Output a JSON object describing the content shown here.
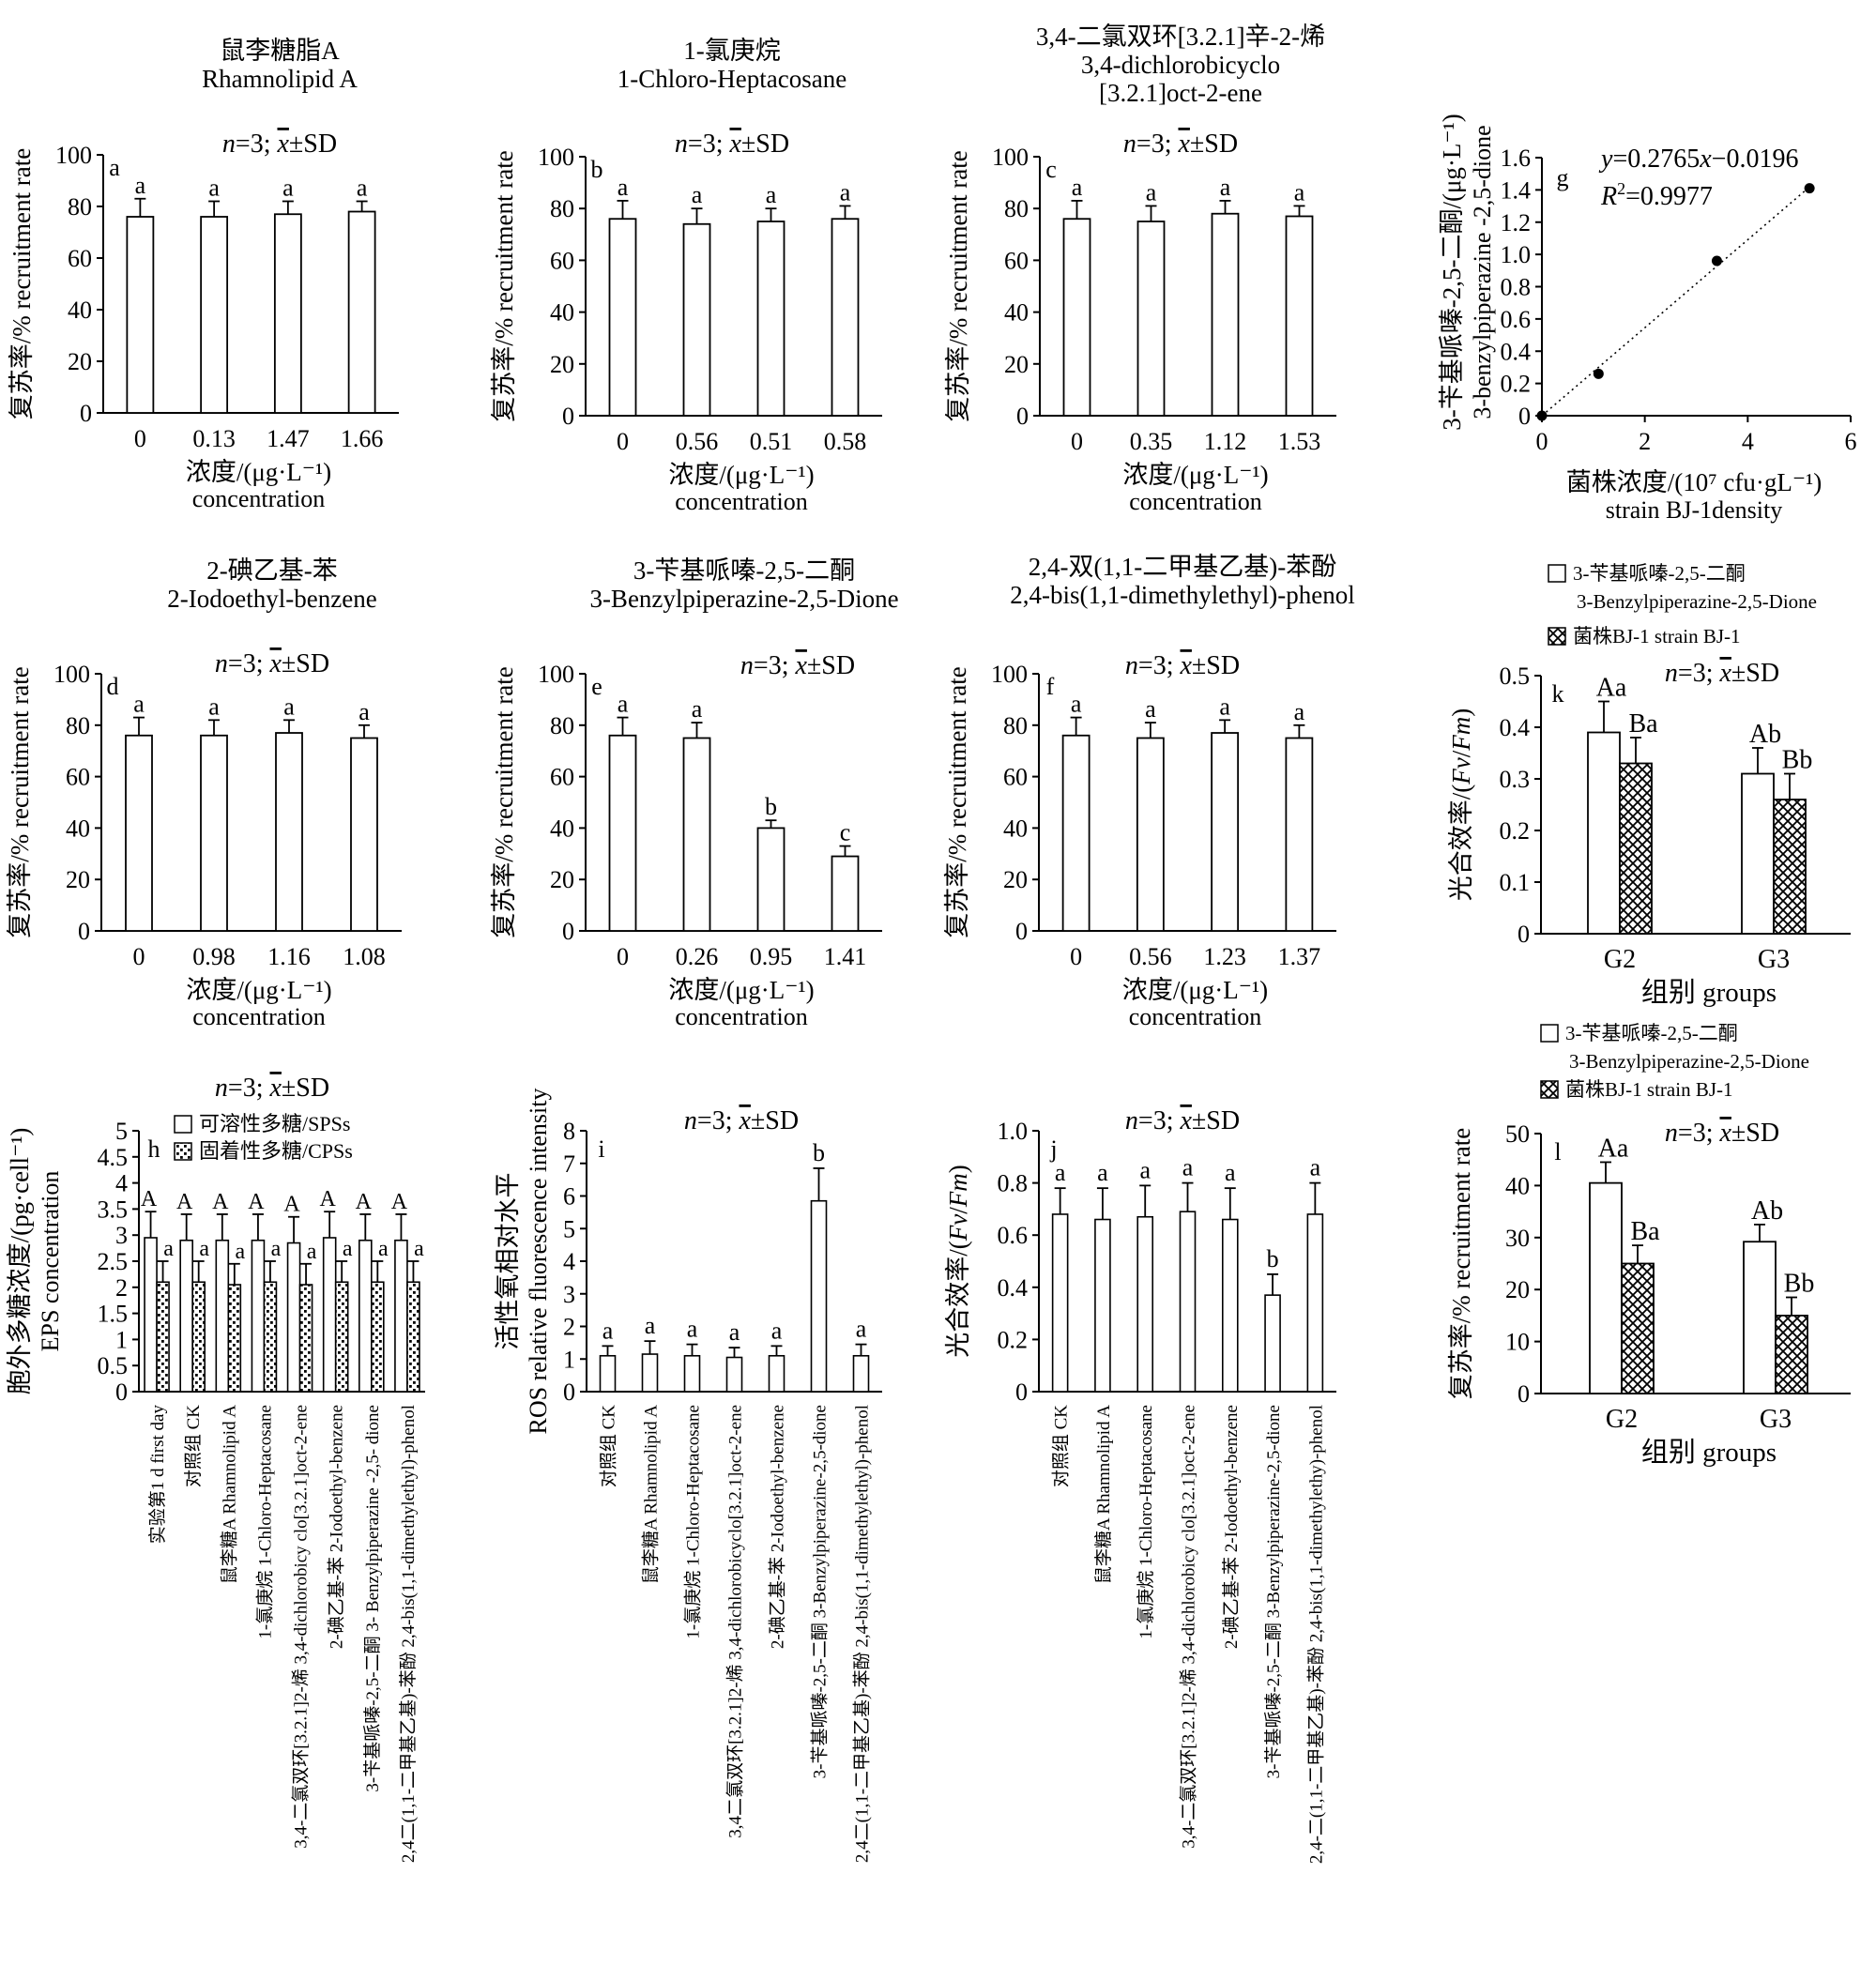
{
  "chart_data": [
    {
      "id": "a",
      "type": "bar",
      "panel_letter": "a",
      "title_lines": [
        "鼠李糖脂A",
        "Rhamnolipid A"
      ],
      "stat_note": {
        "n_prefix": "n",
        "n_text": "=3; ",
        "x_text": "x",
        "sd_text": "±SD"
      },
      "categories": [
        "0",
        "0.13",
        "1.47",
        "1.66"
      ],
      "values": [
        76,
        76,
        77,
        78
      ],
      "errors": [
        7,
        6,
        5,
        4
      ],
      "labels": [
        "a",
        "a",
        "a",
        "a"
      ],
      "ylim": [
        0,
        100
      ],
      "y_ticks": [
        "0",
        "20",
        "40",
        "60",
        "80",
        "100"
      ],
      "ylabel": "复苏率/% recruitment rate",
      "xlabel_lines": [
        "浓度/(μg·L⁻¹)",
        "concentration"
      ]
    },
    {
      "id": "b",
      "type": "bar",
      "panel_letter": "b",
      "title_lines": [
        "1-氯庚烷",
        "1-Chloro-Heptacosane"
      ],
      "stat_note": {
        "n_prefix": "n",
        "n_text": "=3; ",
        "x_text": "x",
        "sd_text": "±SD"
      },
      "categories": [
        "0",
        "0.56",
        "0.51",
        "0.58"
      ],
      "values": [
        76,
        74,
        75,
        76
      ],
      "errors": [
        7,
        6,
        5,
        5
      ],
      "labels": [
        "a",
        "a",
        "a",
        "a"
      ],
      "ylim": [
        0,
        100
      ],
      "y_ticks": [
        "0",
        "20",
        "40",
        "60",
        "80",
        "100"
      ],
      "ylabel": "复苏率/% recruitment rate",
      "xlabel_lines": [
        "浓度/(μg·L⁻¹)",
        "concentration"
      ]
    },
    {
      "id": "c",
      "type": "bar",
      "panel_letter": "c",
      "title_lines": [
        "3,4-二氯双环[3.2.1]辛-2-烯",
        "3,4-dichlorobicyclo",
        "[3.2.1]oct-2-ene"
      ],
      "stat_note": {
        "n_prefix": "n",
        "n_text": "=3; ",
        "x_text": "x",
        "sd_text": "±SD"
      },
      "categories": [
        "0",
        "0.35",
        "1.12",
        "1.53"
      ],
      "values": [
        76,
        75,
        78,
        77
      ],
      "errors": [
        7,
        6,
        5,
        4
      ],
      "labels": [
        "a",
        "a",
        "a",
        "a"
      ],
      "ylim": [
        0,
        100
      ],
      "y_ticks": [
        "0",
        "20",
        "40",
        "60",
        "80",
        "100"
      ],
      "ylabel": "复苏率/% recruitment rate",
      "xlabel_lines": [
        "浓度/(μg·L⁻¹)",
        "concentration"
      ]
    },
    {
      "id": "g",
      "type": "scatter",
      "panel_letter": "g",
      "points": [
        [
          0,
          0.0
        ],
        [
          1.1,
          0.26
        ],
        [
          3.4,
          0.96
        ],
        [
          5.2,
          1.41
        ]
      ],
      "fit": {
        "slope": 0.2765,
        "intercept": -0.0196
      },
      "equation": {
        "y": "y",
        "eq": "=0.2765",
        "x": "x",
        "rest": "−0.0196"
      },
      "r2": {
        "r": "R",
        "sup": "2",
        "rest": "=0.9977"
      },
      "xlim": [
        0,
        6
      ],
      "ylim": [
        0,
        1.6
      ],
      "x_ticks": [
        "0",
        "2",
        "4",
        "6"
      ],
      "y_ticks": [
        "0",
        "0.2",
        "0.4",
        "0.6",
        "0.8",
        "1.0",
        "1.2",
        "1.4",
        "1.6"
      ],
      "ylabel_lines": [
        "3-苄基哌嗪-2,5-二酮/(μg·L⁻¹)",
        "3-benzylpiperazine -2,5-dione"
      ],
      "xlabel_lines": [
        "菌株浓度/(10⁷ cfu·gL⁻¹)",
        "strain BJ-1density"
      ]
    },
    {
      "id": "d",
      "type": "bar",
      "panel_letter": "d",
      "title_lines": [
        "2-碘乙基-苯",
        "2-Iodoethyl-benzene"
      ],
      "stat_note": {
        "n_prefix": "n",
        "n_text": "=3; ",
        "x_text": "x",
        "sd_text": "±SD"
      },
      "categories": [
        "0",
        "0.98",
        "1.16",
        "1.08"
      ],
      "values": [
        76,
        76,
        77,
        75
      ],
      "errors": [
        7,
        6,
        5,
        5
      ],
      "labels": [
        "a",
        "a",
        "a",
        "a"
      ],
      "ylim": [
        0,
        100
      ],
      "y_ticks": [
        "0",
        "20",
        "40",
        "60",
        "80",
        "100"
      ],
      "ylabel": "复苏率/% recruitment rate",
      "xlabel_lines": [
        "浓度/(μg·L⁻¹)",
        "concentration"
      ]
    },
    {
      "id": "e",
      "type": "bar",
      "panel_letter": "e",
      "title_lines": [
        "3-苄基哌嗪-2,5-二酮",
        "3-Benzylpiperazine-2,5-Dione"
      ],
      "stat_note": {
        "n_prefix": "n",
        "n_text": "=3; ",
        "x_text": "x",
        "sd_text": "±SD"
      },
      "categories": [
        "0",
        "0.26",
        "0.95",
        "1.41"
      ],
      "values": [
        76,
        75,
        40,
        29
      ],
      "errors": [
        7,
        6,
        3,
        4
      ],
      "labels": [
        "a",
        "a",
        "b",
        "c"
      ],
      "ylim": [
        0,
        100
      ],
      "y_ticks": [
        "0",
        "20",
        "40",
        "60",
        "80",
        "100"
      ],
      "ylabel": "复苏率/% recruitment rate",
      "xlabel_lines": [
        "浓度/(μg·L⁻¹)",
        "concentration"
      ]
    },
    {
      "id": "f",
      "type": "bar",
      "panel_letter": "f",
      "title_lines": [
        "2,4-双(1,1-二甲基乙基)-苯酚",
        "2,4-bis(1,1-dimethylethyl)-phenol"
      ],
      "stat_note": {
        "n_prefix": "n",
        "n_text": "=3; ",
        "x_text": "x",
        "sd_text": "±SD"
      },
      "categories": [
        "0",
        "0.56",
        "1.23",
        "1.37"
      ],
      "values": [
        76,
        75,
        77,
        75
      ],
      "errors": [
        7,
        6,
        5,
        5
      ],
      "labels": [
        "a",
        "a",
        "a",
        "a"
      ],
      "ylim": [
        0,
        100
      ],
      "y_ticks": [
        "0",
        "20",
        "40",
        "60",
        "80",
        "100"
      ],
      "ylabel": "复苏率/% recruitment rate",
      "xlabel_lines": [
        "浓度/(μg·L⁻¹)",
        "concentration"
      ]
    },
    {
      "id": "k",
      "type": "bar",
      "panel_letter": "k",
      "stat_note": {
        "n_prefix": "n",
        "n_text": "=3; ",
        "x_text": "x",
        "sd_text": "±SD"
      },
      "legend": [
        {
          "name_lines": [
            "3-苄基哌嗪-2,5-二酮",
            "3-Benzylpiperazine-2,5-Dione"
          ],
          "pattern": "open"
        },
        {
          "name_lines": [
            "菌株BJ-1 strain BJ-1"
          ],
          "pattern": "hatch"
        }
      ],
      "categories": [
        "G2",
        "G3"
      ],
      "series": [
        {
          "values": [
            0.39,
            0.31
          ],
          "errors": [
            0.06,
            0.05
          ],
          "labels": [
            "Aa",
            "Ab"
          ]
        },
        {
          "values": [
            0.33,
            0.26
          ],
          "errors": [
            0.05,
            0.05
          ],
          "labels": [
            "Ba",
            "Bb"
          ]
        }
      ],
      "ylim": [
        0,
        0.5
      ],
      "y_ticks": [
        "0",
        "0.1",
        "0.2",
        "0.3",
        "0.4",
        "0.5"
      ],
      "ylabel": {
        "prefix": "光合效率/(",
        "italic": "Fv",
        "mid": "/",
        "italic2": "Fm",
        "suffix": ")"
      },
      "xlabel": "组别 groups"
    },
    {
      "id": "h",
      "type": "bar",
      "panel_letter": "h",
      "stat_note": {
        "n_prefix": "n",
        "n_text": "=3; ",
        "x_text": "x",
        "sd_text": "±SD"
      },
      "legend": [
        {
          "name_lines": [
            "可溶性多糖/SPSs"
          ],
          "pattern": "open"
        },
        {
          "name_lines": [
            "固着性多糖/CPSs"
          ],
          "pattern": "dots"
        }
      ],
      "categories": [
        "实验第1 d first day",
        "对照组 CK",
        "鼠李糖A Rhamnolipid A",
        "1-氯庚烷 1-Chloro-Heptacosane",
        "3,4-二氯双环[3.2.1]2-烯 3,4-dichlorobicy clo[3.2.1]oct-2-ene",
        "2-碘乙基-苯 2-Iodoethyl-benzene",
        "3-苄基哌嗪-2,5-二酮 3- Benzylpiperazine -2,5- dione",
        "2,4二(1,1-二甲基乙基)-苯酚 2,4-bis(1,1-dimethylethyl)-phenol"
      ],
      "series": [
        {
          "values": [
            2.95,
            2.9,
            2.9,
            2.9,
            2.85,
            2.95,
            2.9,
            2.9
          ],
          "errors": [
            0.5,
            0.5,
            0.5,
            0.5,
            0.5,
            0.5,
            0.5,
            0.5
          ],
          "labels": [
            "A",
            "A",
            "A",
            "A",
            "A",
            "A",
            "A",
            "A"
          ]
        },
        {
          "values": [
            2.1,
            2.1,
            2.05,
            2.1,
            2.05,
            2.1,
            2.1,
            2.1
          ],
          "errors": [
            0.4,
            0.4,
            0.4,
            0.4,
            0.4,
            0.4,
            0.4,
            0.4
          ],
          "labels": [
            "a",
            "a",
            "a",
            "a",
            "a",
            "a",
            "a",
            "a"
          ]
        }
      ],
      "ylim": [
        0,
        5
      ],
      "y_ticks": [
        "0",
        "0.5",
        "1",
        "1.5",
        "2",
        "2.5",
        "3",
        "3.5",
        "4",
        "4.5",
        "5"
      ],
      "ylabel_lines": [
        "胞外多糖浓度/(pg·cell⁻¹)",
        "EPS concentration"
      ]
    },
    {
      "id": "i",
      "type": "bar",
      "panel_letter": "i",
      "stat_note": {
        "n_prefix": "n",
        "n_text": "=3; ",
        "x_text": "x",
        "sd_text": "±SD"
      },
      "categories": [
        "对照组 CK",
        "鼠李糖A Rhamnolipid A",
        "1-氯庚烷 1-Chloro-Heptacosane",
        "3,4二氯双环[3.2.1]2-烯 3,4-dichlorobicyclo[3.2.1]oct-2-ene",
        "2-碘乙基-苯 2-Iodoethyl-benzene",
        "3-苄基哌嗪-2,5-二酮 3-Benzylpiperazine-2,5-dione",
        "2,4二(1,1-二甲基乙基)-苯酚 2,4-bis(1,1-dimethylethyl)-phenol"
      ],
      "values": [
        1.1,
        1.15,
        1.1,
        1.05,
        1.1,
        5.85,
        1.1
      ],
      "errors": [
        0.3,
        0.4,
        0.35,
        0.3,
        0.3,
        1.0,
        0.35
      ],
      "labels": [
        "a",
        "a",
        "a",
        "a",
        "a",
        "b",
        "a"
      ],
      "ylim": [
        0,
        8
      ],
      "y_ticks": [
        "0",
        "1",
        "2",
        "3",
        "4",
        "5",
        "6",
        "7",
        "8"
      ],
      "ylabel_lines": [
        "活性氧相对水平",
        "ROS relative fluorescence intensity"
      ]
    },
    {
      "id": "j",
      "type": "bar",
      "panel_letter": "j",
      "stat_note": {
        "n_prefix": "n",
        "n_text": "=3; ",
        "x_text": "x",
        "sd_text": "±SD"
      },
      "categories": [
        "对照组 CK",
        "鼠李糖A Rhamnolipid A",
        "1-氯庚烷 1-Chloro-Heptacosane",
        "3,4-二氯双环[3.2.1]2-烯 3,4-dichlorobicy clo[3.2.1]oct-2-ene",
        "2-碘乙基-苯 2-Iodoethyl-benzene",
        "3-苄基哌嗪-2,5-二酮 3-Benzylpiperazine-2,5-dione",
        "2,4-二(1,1-二甲基乙基)-苯酚 2,4-bis(1,1-dimethylethy)-phenol"
      ],
      "values": [
        0.68,
        0.66,
        0.67,
        0.69,
        0.66,
        0.37,
        0.68
      ],
      "errors": [
        0.1,
        0.12,
        0.12,
        0.11,
        0.12,
        0.08,
        0.12
      ],
      "labels": [
        "a",
        "a",
        "a",
        "a",
        "a",
        "b",
        "a"
      ],
      "ylim": [
        0,
        1.0
      ],
      "y_ticks": [
        "0",
        "0.2",
        "0.4",
        "0.6",
        "0.8",
        "1.0"
      ],
      "ylabel": {
        "prefix": "光合效率/(",
        "italic": "Fv",
        "mid": "/",
        "italic2": "Fm",
        "suffix": ")"
      }
    },
    {
      "id": "l",
      "type": "bar",
      "panel_letter": "l",
      "stat_note": {
        "n_prefix": "n",
        "n_text": "=3; ",
        "x_text": "x",
        "sd_text": "±SD"
      },
      "legend": [
        {
          "name_lines": [
            "3-苄基哌嗪-2,5-二酮",
            "3-Benzylpiperazine-2,5-Dione"
          ],
          "pattern": "open"
        },
        {
          "name_lines": [
            "菌株BJ-1 strain BJ-1"
          ],
          "pattern": "hatch"
        }
      ],
      "categories": [
        "G2",
        "G3"
      ],
      "series": [
        {
          "values": [
            40.5,
            29.2
          ],
          "errors": [
            4.0,
            3.3
          ],
          "labels": [
            "Aa",
            "Ab"
          ]
        },
        {
          "values": [
            25.0,
            15.0
          ],
          "errors": [
            3.5,
            3.5
          ],
          "labels": [
            "Ba",
            "Bb"
          ]
        }
      ],
      "ylim": [
        0,
        50
      ],
      "y_ticks": [
        "0",
        "10",
        "20",
        "30",
        "40",
        "50"
      ],
      "ylabel": "复苏率/% recruitment rate",
      "xlabel": "组别 groups"
    }
  ]
}
